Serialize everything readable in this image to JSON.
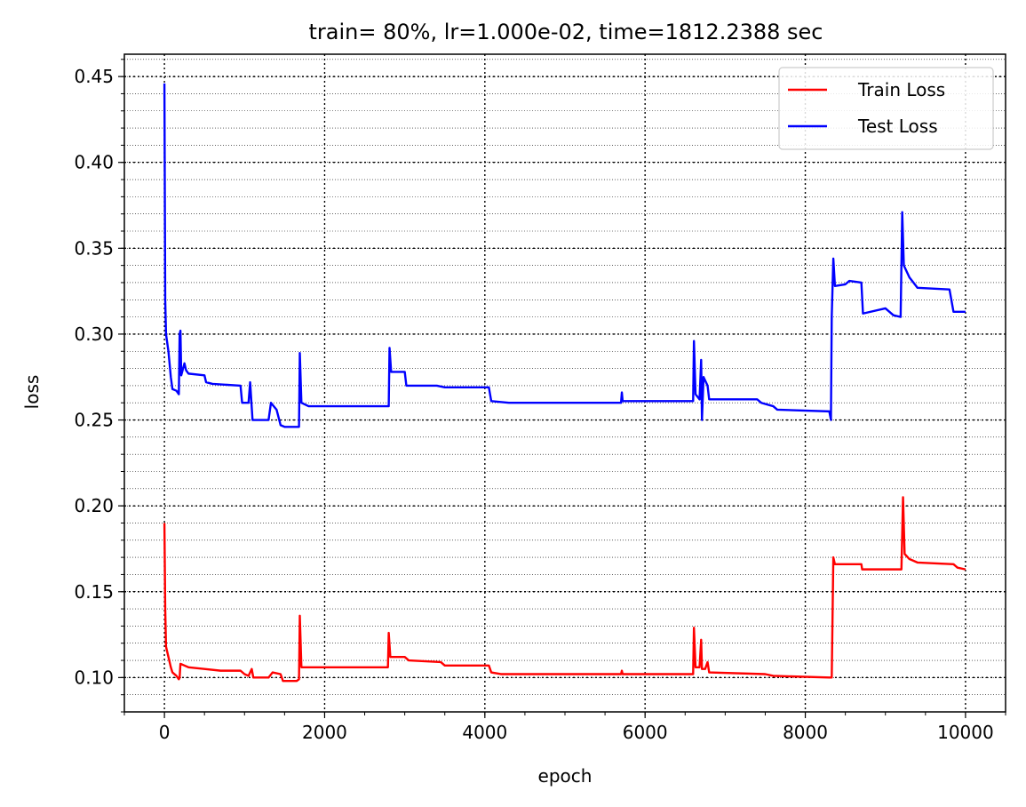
{
  "chart_data": {
    "type": "line",
    "title": "train= 80%, lr=1.000e-02, time=1812.2388 sec",
    "xlabel": "epoch",
    "ylabel": "loss",
    "xlim": [
      -500,
      10500
    ],
    "ylim": [
      0.08,
      0.463
    ],
    "x_ticks": [
      0,
      2000,
      4000,
      6000,
      8000,
      10000
    ],
    "x_tick_labels": [
      "0",
      "2000",
      "4000",
      "6000",
      "8000",
      "10000"
    ],
    "y_ticks": [
      0.1,
      0.15,
      0.2,
      0.25,
      0.3,
      0.35,
      0.4,
      0.45
    ],
    "y_tick_labels": [
      "0.10",
      "0.15",
      "0.20",
      "0.25",
      "0.30",
      "0.35",
      "0.40",
      "0.45"
    ],
    "grid": true,
    "minor_grid": true,
    "legend_position": "top-right",
    "series": [
      {
        "name": "Train Loss",
        "color": "#ff0000",
        "points": [
          [
            0,
            0.19
          ],
          [
            10,
            0.14
          ],
          [
            20,
            0.118
          ],
          [
            50,
            0.112
          ],
          [
            80,
            0.106
          ],
          [
            100,
            0.103
          ],
          [
            150,
            0.101
          ],
          [
            180,
            0.099
          ],
          [
            190,
            0.1
          ],
          [
            200,
            0.108
          ],
          [
            250,
            0.107
          ],
          [
            300,
            0.106
          ],
          [
            500,
            0.105
          ],
          [
            700,
            0.104
          ],
          [
            950,
            0.104
          ],
          [
            1000,
            0.102
          ],
          [
            1050,
            0.101
          ],
          [
            1090,
            0.105
          ],
          [
            1110,
            0.1
          ],
          [
            1300,
            0.1
          ],
          [
            1350,
            0.103
          ],
          [
            1450,
            0.102
          ],
          [
            1480,
            0.098
          ],
          [
            1650,
            0.098
          ],
          [
            1680,
            0.099
          ],
          [
            1690,
            0.136
          ],
          [
            1710,
            0.106
          ],
          [
            1800,
            0.106
          ],
          [
            2790,
            0.106
          ],
          [
            2800,
            0.126
          ],
          [
            2820,
            0.112
          ],
          [
            3000,
            0.112
          ],
          [
            3050,
            0.11
          ],
          [
            3450,
            0.109
          ],
          [
            3500,
            0.107
          ],
          [
            4050,
            0.107
          ],
          [
            4080,
            0.103
          ],
          [
            4200,
            0.102
          ],
          [
            5700,
            0.102
          ],
          [
            5710,
            0.104
          ],
          [
            5720,
            0.102
          ],
          [
            6600,
            0.102
          ],
          [
            6610,
            0.129
          ],
          [
            6630,
            0.106
          ],
          [
            6680,
            0.106
          ],
          [
            6700,
            0.122
          ],
          [
            6710,
            0.105
          ],
          [
            6750,
            0.105
          ],
          [
            6780,
            0.109
          ],
          [
            6800,
            0.103
          ],
          [
            7500,
            0.102
          ],
          [
            7600,
            0.101
          ],
          [
            8300,
            0.1
          ],
          [
            8330,
            0.1
          ],
          [
            8350,
            0.17
          ],
          [
            8370,
            0.166
          ],
          [
            8700,
            0.166
          ],
          [
            8710,
            0.163
          ],
          [
            9200,
            0.163
          ],
          [
            9220,
            0.205
          ],
          [
            9240,
            0.172
          ],
          [
            9300,
            0.169
          ],
          [
            9400,
            0.167
          ],
          [
            9850,
            0.166
          ],
          [
            9900,
            0.164
          ],
          [
            10000,
            0.163
          ]
        ]
      },
      {
        "name": "Test Loss",
        "color": "#0000ff",
        "points": [
          [
            0,
            0.446
          ],
          [
            10,
            0.32
          ],
          [
            20,
            0.3
          ],
          [
            50,
            0.29
          ],
          [
            80,
            0.275
          ],
          [
            100,
            0.268
          ],
          [
            150,
            0.267
          ],
          [
            180,
            0.265
          ],
          [
            190,
            0.3
          ],
          [
            200,
            0.302
          ],
          [
            210,
            0.276
          ],
          [
            250,
            0.283
          ],
          [
            270,
            0.279
          ],
          [
            300,
            0.277
          ],
          [
            500,
            0.276
          ],
          [
            520,
            0.272
          ],
          [
            600,
            0.271
          ],
          [
            950,
            0.27
          ],
          [
            970,
            0.26
          ],
          [
            1050,
            0.26
          ],
          [
            1070,
            0.272
          ],
          [
            1100,
            0.25
          ],
          [
            1300,
            0.25
          ],
          [
            1330,
            0.26
          ],
          [
            1400,
            0.256
          ],
          [
            1450,
            0.247
          ],
          [
            1500,
            0.246
          ],
          [
            1680,
            0.246
          ],
          [
            1690,
            0.289
          ],
          [
            1710,
            0.26
          ],
          [
            1800,
            0.258
          ],
          [
            2800,
            0.258
          ],
          [
            2810,
            0.292
          ],
          [
            2830,
            0.278
          ],
          [
            3000,
            0.278
          ],
          [
            3020,
            0.27
          ],
          [
            3400,
            0.27
          ],
          [
            3500,
            0.269
          ],
          [
            4050,
            0.269
          ],
          [
            4080,
            0.261
          ],
          [
            4300,
            0.26
          ],
          [
            5700,
            0.26
          ],
          [
            5710,
            0.266
          ],
          [
            5720,
            0.261
          ],
          [
            6600,
            0.261
          ],
          [
            6610,
            0.296
          ],
          [
            6630,
            0.265
          ],
          [
            6680,
            0.262
          ],
          [
            6700,
            0.285
          ],
          [
            6710,
            0.25
          ],
          [
            6730,
            0.275
          ],
          [
            6780,
            0.27
          ],
          [
            6800,
            0.262
          ],
          [
            7400,
            0.262
          ],
          [
            7450,
            0.26
          ],
          [
            7600,
            0.258
          ],
          [
            7650,
            0.256
          ],
          [
            8300,
            0.255
          ],
          [
            8320,
            0.25
          ],
          [
            8330,
            0.31
          ],
          [
            8350,
            0.344
          ],
          [
            8370,
            0.328
          ],
          [
            8500,
            0.329
          ],
          [
            8550,
            0.331
          ],
          [
            8700,
            0.33
          ],
          [
            8720,
            0.312
          ],
          [
            9000,
            0.315
          ],
          [
            9100,
            0.311
          ],
          [
            9190,
            0.31
          ],
          [
            9210,
            0.371
          ],
          [
            9230,
            0.34
          ],
          [
            9300,
            0.333
          ],
          [
            9400,
            0.327
          ],
          [
            9800,
            0.326
          ],
          [
            9850,
            0.313
          ],
          [
            10000,
            0.313
          ]
        ]
      }
    ]
  }
}
